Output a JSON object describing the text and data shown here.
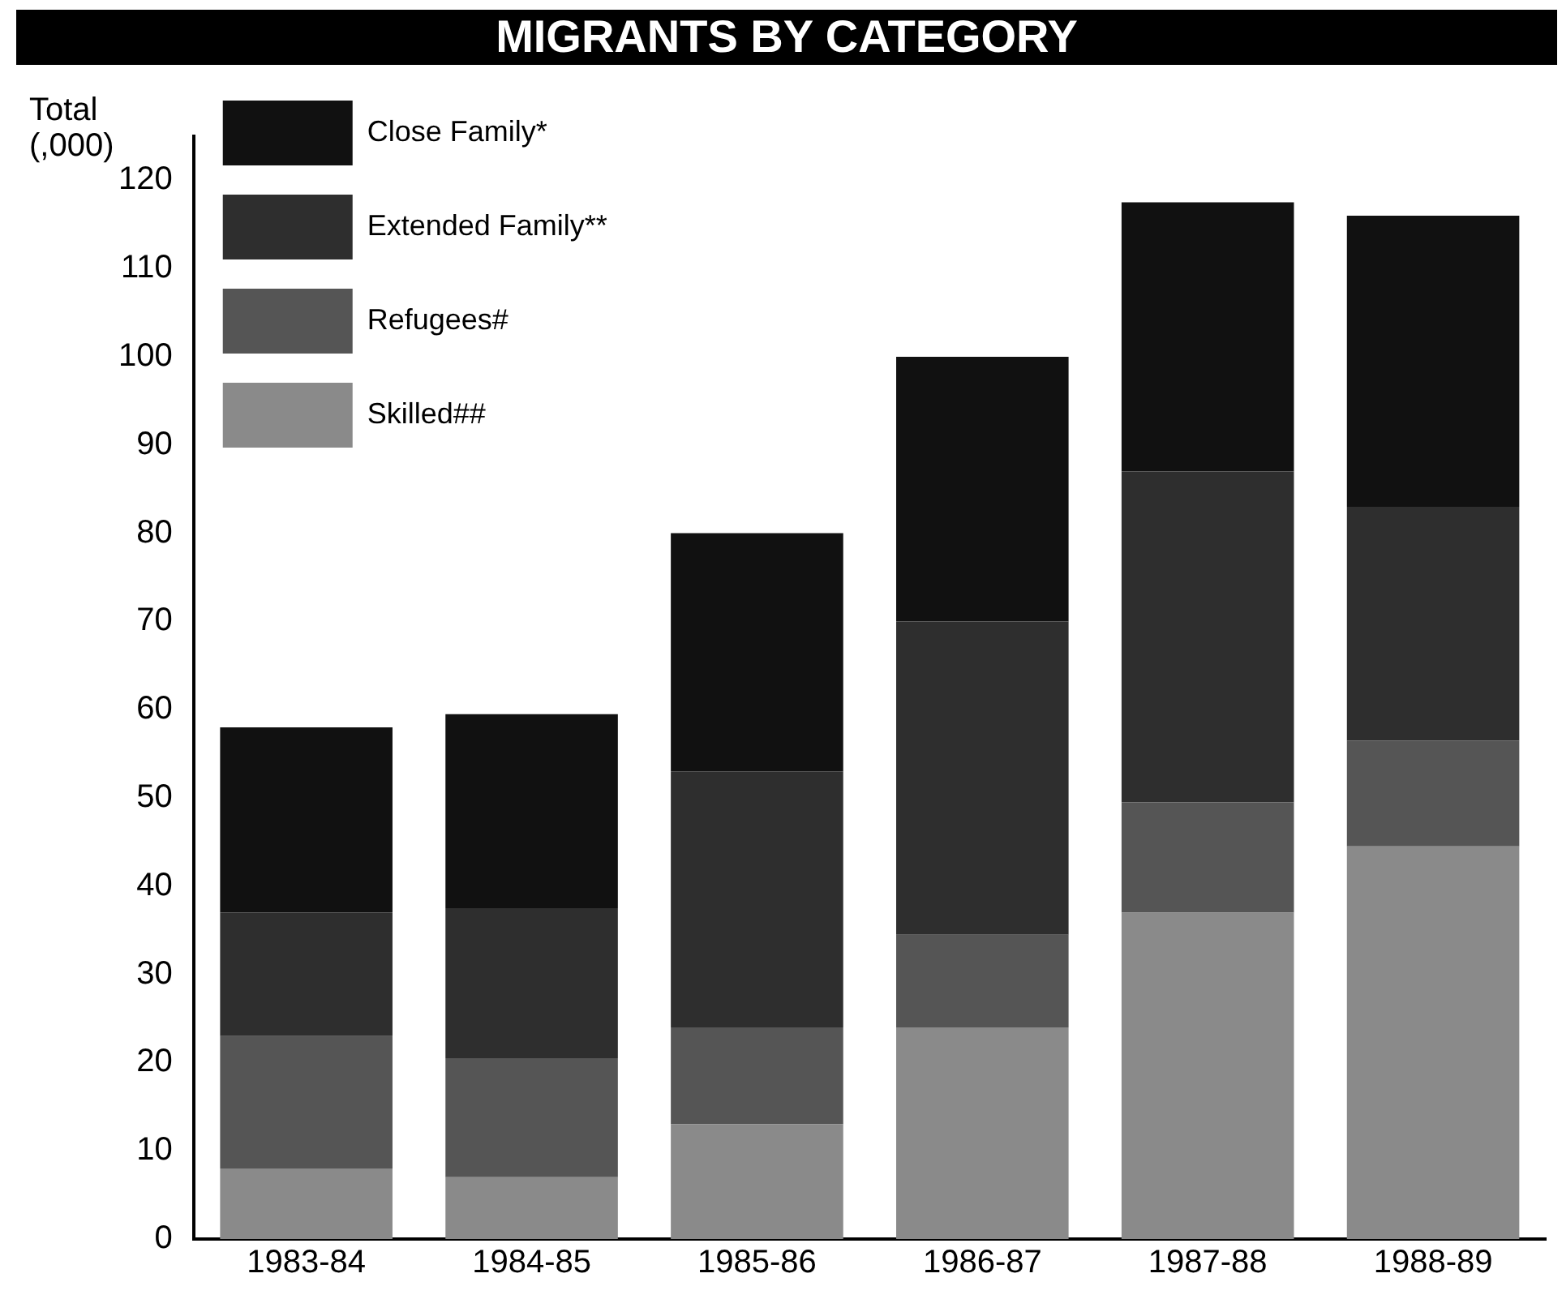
{
  "chart_data": {
    "type": "bar",
    "title": "MIGRANTS BY CATEGORY",
    "ylabel": "Total (,000)",
    "categories": [
      "1983-84",
      "1984-85",
      "1985-86",
      "1986-87",
      "1987-88",
      "1988-89"
    ],
    "stacked": true,
    "series": [
      {
        "name": "Skilled##",
        "color": "#8a8a8a",
        "values": [
          8,
          7,
          13,
          24,
          37,
          44.5
        ]
      },
      {
        "name": "Refugees#",
        "color": "#555555",
        "values": [
          15,
          13.5,
          11,
          10.5,
          12.5,
          12
        ]
      },
      {
        "name": "Extended Family**",
        "color": "#2e2e2e",
        "values": [
          14,
          17,
          29,
          35.5,
          37.5,
          26.5
        ]
      },
      {
        "name": "Close Family*",
        "color": "#111111",
        "values": [
          21,
          22,
          27,
          30,
          30.5,
          33
        ]
      }
    ],
    "ylim": [
      0,
      125
    ],
    "yticks": [
      0,
      10,
      20,
      30,
      40,
      50,
      60,
      70,
      80,
      90,
      100,
      110,
      120
    ],
    "grid": false,
    "legend": "top left"
  }
}
